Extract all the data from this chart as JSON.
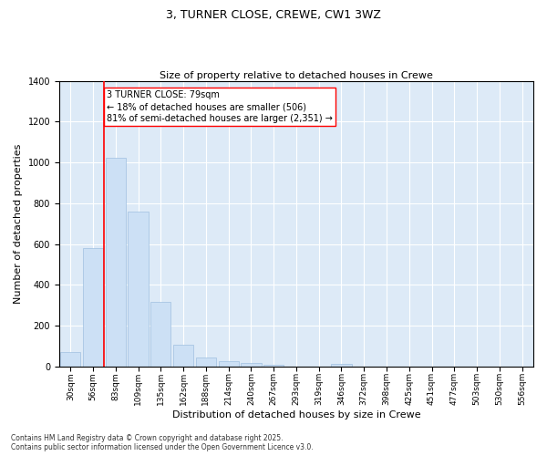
{
  "title": "3, TURNER CLOSE, CREWE, CW1 3WZ",
  "subtitle": "Size of property relative to detached houses in Crewe",
  "xlabel": "Distribution of detached houses by size in Crewe",
  "ylabel": "Number of detached properties",
  "bar_color": "#cce0f5",
  "bar_edgecolor": "#a0c0e0",
  "background_color": "#ddeaf7",
  "grid_color": "#ffffff",
  "categories": [
    "30sqm",
    "56sqm",
    "83sqm",
    "109sqm",
    "135sqm",
    "162sqm",
    "188sqm",
    "214sqm",
    "240sqm",
    "267sqm",
    "293sqm",
    "319sqm",
    "346sqm",
    "372sqm",
    "398sqm",
    "425sqm",
    "451sqm",
    "477sqm",
    "503sqm",
    "530sqm",
    "556sqm"
  ],
  "values": [
    70,
    580,
    1025,
    760,
    315,
    105,
    43,
    25,
    15,
    8,
    0,
    0,
    12,
    0,
    0,
    0,
    0,
    0,
    0,
    0,
    0
  ],
  "ylim": [
    0,
    1400
  ],
  "yticks": [
    0,
    200,
    400,
    600,
    800,
    1000,
    1200,
    1400
  ],
  "annotation_line1": "3 TURNER CLOSE: 79sqm",
  "annotation_line2": "← 18% of detached houses are smaller (506)",
  "annotation_line3": "81% of semi-detached houses are larger (2,351) →",
  "footnote1": "Contains HM Land Registry data © Crown copyright and database right 2025.",
  "footnote2": "Contains public sector information licensed under the Open Government Licence v3.0.",
  "title_fontsize": 9,
  "subtitle_fontsize": 8,
  "axis_label_fontsize": 8,
  "tick_fontsize": 6.5,
  "annotation_fontsize": 7,
  "footnote_fontsize": 5.5
}
